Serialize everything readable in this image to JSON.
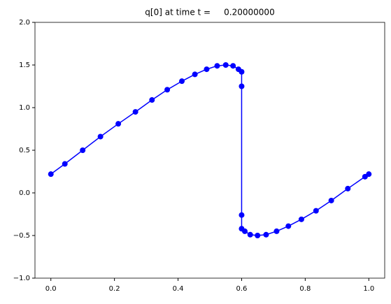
{
  "chart_data": {
    "type": "line",
    "title": "q[0] at time t =     0.20000000",
    "x": [
      0.0,
      0.044,
      0.1,
      0.156,
      0.212,
      0.266,
      0.318,
      0.366,
      0.412,
      0.453,
      0.49,
      0.523,
      0.55,
      0.573,
      0.59,
      0.6,
      0.6,
      0.6,
      0.6,
      0.61,
      0.627,
      0.65,
      0.677,
      0.71,
      0.747,
      0.788,
      0.834,
      0.882,
      0.934,
      0.988,
      1.0
    ],
    "series": [
      {
        "color": "#0000ff",
        "values": [
          0.22,
          0.34,
          0.5,
          0.66,
          0.81,
          0.95,
          1.09,
          1.21,
          1.31,
          1.39,
          1.45,
          1.49,
          1.5,
          1.49,
          1.45,
          1.42,
          1.25,
          -0.26,
          -0.42,
          -0.45,
          -0.49,
          -0.5,
          -0.49,
          -0.45,
          -0.39,
          -0.31,
          -0.21,
          -0.09,
          0.05,
          0.19,
          0.22
        ]
      }
    ],
    "xlim": [
      -0.05,
      1.05
    ],
    "ylim": [
      -1,
      2
    ],
    "xticks": [
      {
        "value": 0,
        "label": "0.0"
      },
      {
        "value": 0.2,
        "label": "0.2"
      },
      {
        "value": 0.4,
        "label": "0.4"
      },
      {
        "value": 0.6,
        "label": "0.6"
      },
      {
        "value": 0.8,
        "label": "0.8"
      },
      {
        "value": 1,
        "label": "1.0"
      }
    ],
    "yticks": [
      {
        "value": -1,
        "label": "−1.0"
      },
      {
        "value": -0.5,
        "label": "−0.5"
      },
      {
        "value": 0,
        "label": "0.0"
      },
      {
        "value": 0.5,
        "label": "0.5"
      },
      {
        "value": 1,
        "label": "1.0"
      },
      {
        "value": 1.5,
        "label": "1.5"
      },
      {
        "value": 2,
        "label": "2.0"
      }
    ],
    "grid": false,
    "marker": "circle"
  }
}
